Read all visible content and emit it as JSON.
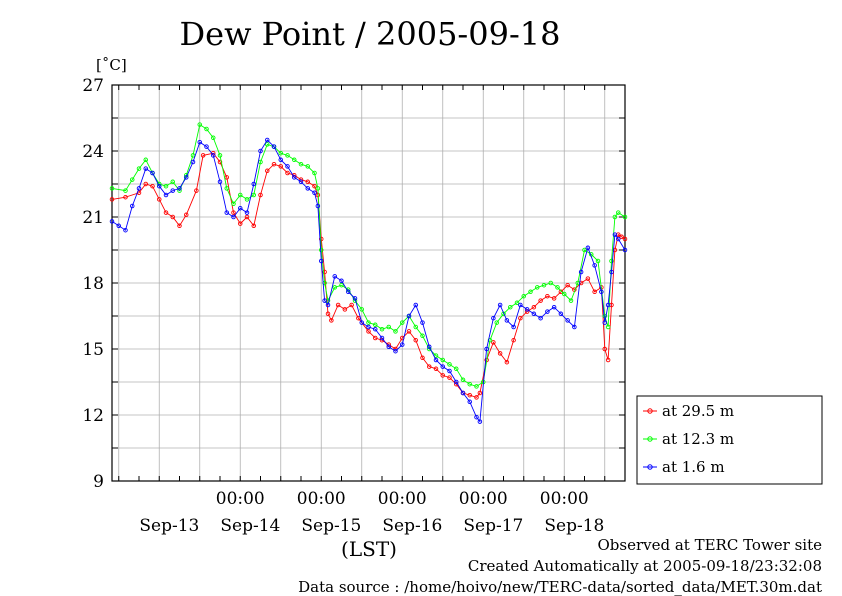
{
  "chart_data": {
    "type": "line",
    "title": "Dew Point / 2005-09-18",
    "ylabel": "[˚C]",
    "xlabel": "(LST)",
    "ylim": [
      9,
      27
    ],
    "yticks": [
      9,
      12,
      15,
      18,
      21,
      24,
      27
    ],
    "x_time_labels": [
      "00:00",
      "00:00",
      "00:00",
      "00:00",
      "00:00"
    ],
    "x_date_labels": [
      "Sep-13",
      "Sep-14",
      "Sep-15",
      "Sep-16",
      "Sep-17",
      "Sep-18"
    ],
    "grid": true,
    "legend_position": "right-bottom",
    "series": [
      {
        "name": "at 29.5 m",
        "color": "#ff0000",
        "points": [
          [
            0.0,
            21.8
          ],
          [
            2.0,
            21.9
          ],
          [
            4.0,
            22.1
          ],
          [
            5.0,
            22.5
          ],
          [
            6.0,
            22.4
          ],
          [
            7.0,
            21.8
          ],
          [
            8.0,
            21.2
          ],
          [
            9.0,
            21.0
          ],
          [
            10.0,
            20.6
          ],
          [
            11.0,
            21.1
          ],
          [
            12.5,
            22.2
          ],
          [
            13.5,
            23.8
          ],
          [
            15.0,
            23.9
          ],
          [
            16.0,
            23.5
          ],
          [
            17.0,
            22.8
          ],
          [
            18.0,
            21.2
          ],
          [
            19.0,
            20.7
          ],
          [
            20.0,
            21.0
          ],
          [
            21.0,
            20.6
          ],
          [
            22.0,
            22.0
          ],
          [
            23.0,
            23.1
          ],
          [
            24.0,
            23.4
          ],
          [
            25.0,
            23.3
          ],
          [
            26.0,
            23.0
          ],
          [
            27.0,
            22.9
          ],
          [
            28.0,
            22.7
          ],
          [
            29.0,
            22.6
          ],
          [
            30.0,
            22.4
          ],
          [
            30.5,
            22.0
          ],
          [
            31.0,
            20.0
          ],
          [
            31.5,
            18.5
          ],
          [
            32.0,
            16.6
          ],
          [
            32.5,
            16.3
          ],
          [
            33.5,
            17.0
          ],
          [
            34.5,
            16.8
          ],
          [
            35.5,
            17.0
          ],
          [
            36.5,
            16.4
          ],
          [
            38.0,
            15.8
          ],
          [
            39.0,
            15.5
          ],
          [
            40.0,
            15.4
          ],
          [
            41.0,
            15.2
          ],
          [
            42.0,
            15.0
          ],
          [
            43.0,
            15.5
          ],
          [
            44.0,
            15.8
          ],
          [
            45.0,
            15.4
          ],
          [
            46.0,
            14.6
          ],
          [
            47.0,
            14.2
          ],
          [
            48.0,
            14.1
          ],
          [
            49.0,
            13.8
          ],
          [
            50.0,
            13.7
          ],
          [
            51.0,
            13.4
          ],
          [
            52.0,
            13.0
          ],
          [
            53.0,
            12.9
          ],
          [
            54.0,
            12.8
          ],
          [
            54.5,
            13.0
          ],
          [
            55.5,
            14.5
          ],
          [
            56.5,
            15.3
          ],
          [
            57.5,
            14.8
          ],
          [
            58.5,
            14.4
          ],
          [
            59.5,
            15.4
          ],
          [
            60.5,
            16.4
          ],
          [
            61.5,
            16.7
          ],
          [
            62.5,
            16.9
          ],
          [
            63.5,
            17.2
          ],
          [
            64.5,
            17.4
          ],
          [
            65.5,
            17.3
          ],
          [
            66.5,
            17.6
          ],
          [
            67.5,
            17.9
          ],
          [
            68.5,
            17.7
          ],
          [
            69.5,
            18.0
          ],
          [
            70.5,
            18.2
          ],
          [
            71.5,
            17.6
          ],
          [
            72.5,
            17.8
          ],
          [
            73.0,
            15.0
          ],
          [
            73.5,
            14.5
          ],
          [
            74.0,
            17.0
          ],
          [
            74.5,
            19.5
          ],
          [
            75.0,
            20.2
          ],
          [
            75.5,
            20.1
          ],
          [
            76.0,
            20.0
          ]
        ]
      },
      {
        "name": "at 12.3 m",
        "color": "#00ff00",
        "points": [
          [
            0.0,
            22.3
          ],
          [
            2.0,
            22.2
          ],
          [
            3.0,
            22.7
          ],
          [
            4.0,
            23.2
          ],
          [
            5.0,
            23.6
          ],
          [
            6.0,
            23.0
          ],
          [
            7.0,
            22.5
          ],
          [
            8.0,
            22.4
          ],
          [
            9.0,
            22.6
          ],
          [
            10.0,
            22.2
          ],
          [
            11.0,
            22.9
          ],
          [
            12.0,
            23.8
          ],
          [
            13.0,
            25.2
          ],
          [
            14.0,
            25.0
          ],
          [
            15.0,
            24.6
          ],
          [
            16.0,
            23.8
          ],
          [
            17.0,
            22.3
          ],
          [
            18.0,
            21.6
          ],
          [
            19.0,
            22.0
          ],
          [
            20.0,
            21.8
          ],
          [
            21.0,
            22.0
          ],
          [
            22.0,
            23.5
          ],
          [
            23.0,
            24.3
          ],
          [
            24.0,
            24.2
          ],
          [
            25.0,
            23.9
          ],
          [
            26.0,
            23.8
          ],
          [
            27.0,
            23.6
          ],
          [
            28.0,
            23.4
          ],
          [
            29.0,
            23.3
          ],
          [
            30.0,
            23.0
          ],
          [
            30.5,
            22.3
          ],
          [
            31.0,
            19.5
          ],
          [
            31.5,
            18.0
          ],
          [
            32.0,
            17.2
          ],
          [
            33.0,
            17.8
          ],
          [
            34.0,
            17.9
          ],
          [
            35.0,
            17.7
          ],
          [
            36.0,
            17.2
          ],
          [
            37.0,
            16.8
          ],
          [
            38.0,
            16.2
          ],
          [
            39.0,
            16.1
          ],
          [
            40.0,
            15.9
          ],
          [
            41.0,
            16.0
          ],
          [
            42.0,
            15.8
          ],
          [
            43.0,
            16.2
          ],
          [
            44.0,
            16.5
          ],
          [
            45.0,
            16.0
          ],
          [
            46.0,
            15.6
          ],
          [
            47.0,
            15.0
          ],
          [
            48.0,
            14.7
          ],
          [
            49.0,
            14.5
          ],
          [
            50.0,
            14.3
          ],
          [
            51.0,
            14.1
          ],
          [
            52.0,
            13.6
          ],
          [
            53.0,
            13.4
          ],
          [
            54.0,
            13.3
          ],
          [
            55.0,
            13.5
          ],
          [
            56.0,
            15.4
          ],
          [
            57.0,
            16.2
          ],
          [
            58.0,
            16.6
          ],
          [
            59.0,
            16.9
          ],
          [
            60.0,
            17.1
          ],
          [
            61.0,
            17.4
          ],
          [
            62.0,
            17.6
          ],
          [
            63.0,
            17.8
          ],
          [
            64.0,
            17.9
          ],
          [
            65.0,
            18.0
          ],
          [
            66.0,
            17.8
          ],
          [
            67.0,
            17.5
          ],
          [
            68.0,
            17.2
          ],
          [
            69.0,
            18.0
          ],
          [
            70.0,
            19.5
          ],
          [
            71.0,
            19.3
          ],
          [
            72.0,
            19.0
          ],
          [
            73.0,
            16.5
          ],
          [
            73.5,
            16.0
          ],
          [
            74.0,
            19.0
          ],
          [
            74.5,
            21.0
          ],
          [
            75.0,
            21.2
          ],
          [
            76.0,
            21.0
          ]
        ]
      },
      {
        "name": "at 1.6 m",
        "color": "#0000ff",
        "points": [
          [
            0.0,
            20.8
          ],
          [
            1.0,
            20.6
          ],
          [
            2.0,
            20.4
          ],
          [
            3.0,
            21.5
          ],
          [
            4.0,
            22.3
          ],
          [
            5.0,
            23.2
          ],
          [
            6.0,
            23.0
          ],
          [
            7.0,
            22.4
          ],
          [
            8.0,
            22.0
          ],
          [
            9.0,
            22.2
          ],
          [
            10.0,
            22.3
          ],
          [
            11.0,
            22.8
          ],
          [
            12.0,
            23.5
          ],
          [
            13.0,
            24.4
          ],
          [
            14.0,
            24.2
          ],
          [
            15.0,
            23.8
          ],
          [
            16.0,
            22.6
          ],
          [
            17.0,
            21.2
          ],
          [
            18.0,
            21.0
          ],
          [
            19.0,
            21.4
          ],
          [
            20.0,
            21.2
          ],
          [
            21.0,
            22.5
          ],
          [
            22.0,
            24.0
          ],
          [
            23.0,
            24.5
          ],
          [
            24.0,
            24.2
          ],
          [
            25.0,
            23.6
          ],
          [
            26.0,
            23.3
          ],
          [
            27.0,
            22.8
          ],
          [
            28.0,
            22.6
          ],
          [
            29.0,
            22.3
          ],
          [
            30.0,
            22.1
          ],
          [
            30.5,
            21.5
          ],
          [
            31.0,
            19.0
          ],
          [
            31.5,
            17.2
          ],
          [
            32.0,
            17.0
          ],
          [
            33.0,
            18.3
          ],
          [
            34.0,
            18.1
          ],
          [
            35.0,
            17.6
          ],
          [
            36.0,
            17.3
          ],
          [
            37.0,
            16.2
          ],
          [
            38.0,
            16.0
          ],
          [
            39.0,
            15.9
          ],
          [
            40.0,
            15.5
          ],
          [
            41.0,
            15.1
          ],
          [
            42.0,
            14.9
          ],
          [
            43.0,
            15.2
          ],
          [
            44.0,
            16.5
          ],
          [
            45.0,
            17.0
          ],
          [
            46.0,
            16.2
          ],
          [
            47.0,
            15.1
          ],
          [
            48.0,
            14.5
          ],
          [
            49.0,
            14.2
          ],
          [
            50.0,
            14.0
          ],
          [
            51.0,
            13.5
          ],
          [
            52.0,
            13.0
          ],
          [
            53.0,
            12.6
          ],
          [
            54.0,
            11.9
          ],
          [
            54.5,
            11.7
          ],
          [
            55.5,
            15.0
          ],
          [
            56.5,
            16.4
          ],
          [
            57.5,
            17.0
          ],
          [
            58.5,
            16.3
          ],
          [
            59.5,
            16.0
          ],
          [
            60.5,
            17.0
          ],
          [
            61.5,
            16.8
          ],
          [
            62.5,
            16.6
          ],
          [
            63.5,
            16.4
          ],
          [
            64.5,
            16.7
          ],
          [
            65.5,
            16.9
          ],
          [
            66.5,
            16.6
          ],
          [
            67.5,
            16.3
          ],
          [
            68.5,
            16.0
          ],
          [
            69.5,
            18.5
          ],
          [
            70.5,
            19.6
          ],
          [
            71.5,
            18.8
          ],
          [
            72.5,
            17.6
          ],
          [
            73.0,
            16.2
          ],
          [
            73.5,
            17.0
          ],
          [
            74.0,
            18.5
          ],
          [
            74.5,
            20.2
          ],
          [
            75.0,
            20.0
          ],
          [
            76.0,
            19.5
          ]
        ]
      }
    ]
  },
  "footer": {
    "line1": "Observed at TERC Tower site",
    "line2": "Created Automatically at 2005-09-18/23:32:08",
    "line3": "Data source : /home/hoivo/new/TERC-data/sorted_data/MET.30m.dat"
  }
}
